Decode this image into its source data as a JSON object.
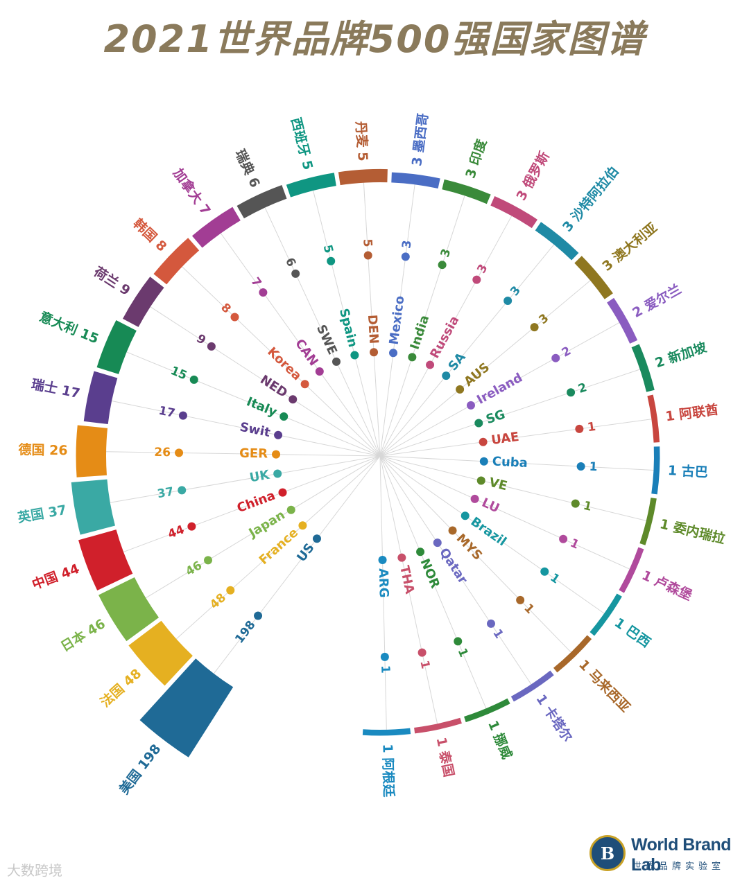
{
  "page": {
    "title": "2021世界品牌500强国家图谱",
    "watermark": "大数跨境"
  },
  "logo": {
    "mark": "B",
    "name": "World Brand Lab",
    "subtitle": "世界品牌实验室"
  },
  "chart_data": {
    "type": "radial-bar",
    "title": "2021世界品牌500强国家图谱",
    "unit": "",
    "categories": [
      {
        "cn": "美国",
        "code": "US",
        "value": 198,
        "color": "#1f6a96"
      },
      {
        "cn": "法国",
        "code": "France",
        "value": 48,
        "color": "#e5b021"
      },
      {
        "cn": "日本",
        "code": "Japan",
        "value": 46,
        "color": "#7bb34a"
      },
      {
        "cn": "中国",
        "code": "China",
        "value": 44,
        "color": "#d0202b"
      },
      {
        "cn": "英国",
        "code": "UK",
        "value": 37,
        "color": "#3aa9a4"
      },
      {
        "cn": "德国",
        "code": "GER",
        "value": 26,
        "color": "#e58c16"
      },
      {
        "cn": "瑞士",
        "code": "Swit",
        "value": 17,
        "color": "#5a3e8e"
      },
      {
        "cn": "意大利",
        "code": "Italy",
        "value": 15,
        "color": "#178a55"
      },
      {
        "cn": "荷兰",
        "code": "NED",
        "value": 9,
        "color": "#6b3a6e"
      },
      {
        "cn": "韩国",
        "code": "Korea",
        "value": 8,
        "color": "#d4583d"
      },
      {
        "cn": "加拿大",
        "code": "CAN",
        "value": 7,
        "color": "#a23d94"
      },
      {
        "cn": "瑞典",
        "code": "SWE",
        "value": 6,
        "color": "#555555"
      },
      {
        "cn": "西班牙",
        "code": "Spain",
        "value": 5,
        "color": "#0f9682"
      },
      {
        "cn": "丹麦",
        "code": "DEN",
        "value": 5,
        "color": "#b45d34"
      },
      {
        "cn": "墨西哥",
        "code": "Mexico",
        "value": 3,
        "color": "#4a6dc4"
      },
      {
        "cn": "印度",
        "code": "India",
        "value": 3,
        "color": "#3a8a3a"
      },
      {
        "cn": "俄罗斯",
        "code": "Russia",
        "value": 3,
        "color": "#c04a7a"
      },
      {
        "cn": "沙特阿拉伯",
        "code": "SA",
        "value": 3,
        "color": "#1f8aa5"
      },
      {
        "cn": "澳大利亚",
        "code": "AUS",
        "value": 3,
        "color": "#8f7720"
      },
      {
        "cn": "爱尔兰",
        "code": "Ireland",
        "value": 2,
        "color": "#8a5cc0"
      },
      {
        "cn": "新加坡",
        "code": "SG",
        "value": 2,
        "color": "#1a8a5e"
      },
      {
        "cn": "阿联酋",
        "code": "UAE",
        "value": 1,
        "color": "#c8463f"
      },
      {
        "cn": "古巴",
        "code": "Cuba",
        "value": 1,
        "color": "#1a7fb8"
      },
      {
        "cn": "委内瑞拉",
        "code": "VE",
        "value": 1,
        "color": "#5e8a2a"
      },
      {
        "cn": "卢森堡",
        "code": "LU",
        "value": 1,
        "color": "#b04a9c"
      },
      {
        "cn": "巴西",
        "code": "Brazil",
        "value": 1,
        "color": "#1596a0"
      },
      {
        "cn": "马来西亚",
        "code": "MYS",
        "value": 1,
        "color": "#a8682a"
      },
      {
        "cn": "卡塔尔",
        "code": "Qatar",
        "value": 1,
        "color": "#6a68c0"
      },
      {
        "cn": "挪威",
        "code": "NOR",
        "value": 1,
        "color": "#2e8a3a"
      },
      {
        "cn": "泰国",
        "code": "THA",
        "value": 1,
        "color": "#c8506a"
      },
      {
        "cn": "阿根廷",
        "code": "ARG",
        "value": 1,
        "color": "#1a8ac0"
      }
    ]
  }
}
